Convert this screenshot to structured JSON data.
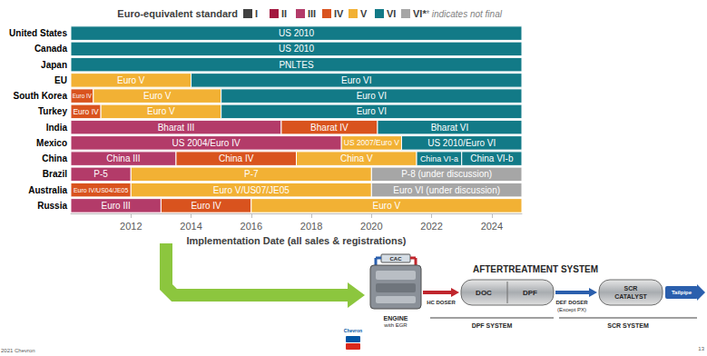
{
  "chart_data": {
    "type": "timeline",
    "legend_title": "Euro-equivalent standard",
    "legend_note": "* indicates not final",
    "legend": "top",
    "standards": [
      {
        "name": "I",
        "color": "#404040"
      },
      {
        "name": "II",
        "color": "#a3173f"
      },
      {
        "name": "III",
        "color": "#b33b69"
      },
      {
        "name": "IV",
        "color": "#d9531e"
      },
      {
        "name": "V",
        "color": "#f2b134"
      },
      {
        "name": "VI",
        "color": "#127a87"
      },
      {
        "name": "VI*",
        "color": "#a6a6a6"
      }
    ],
    "categories": [
      "United States",
      "Canada",
      "Japan",
      "EU",
      "South Korea",
      "Turkey",
      "India",
      "Mexico",
      "China",
      "Brazil",
      "Australia",
      "Russia"
    ],
    "rows": [
      [
        {
          "label": "US 2010",
          "standard": "VI",
          "start": 2010,
          "end": 2025
        }
      ],
      [
        {
          "label": "US 2010",
          "standard": "VI",
          "start": 2010,
          "end": 2025
        }
      ],
      [
        {
          "label": "PNLTES",
          "standard": "VI",
          "start": 2010,
          "end": 2025
        }
      ],
      [
        {
          "label": "Euro V",
          "standard": "V",
          "start": 2010,
          "end": 2014
        },
        {
          "label": "Euro VI",
          "standard": "VI",
          "start": 2014,
          "end": 2025
        }
      ],
      [
        {
          "label": "Euro IV",
          "standard": "IV",
          "start": 2010,
          "end": 2010.75
        },
        {
          "label": "Euro V",
          "standard": "V",
          "start": 2010.75,
          "end": 2015
        },
        {
          "label": "Euro VI",
          "standard": "VI",
          "start": 2015,
          "end": 2025
        }
      ],
      [
        {
          "label": "Euro IV",
          "standard": "IV",
          "start": 2010,
          "end": 2011
        },
        {
          "label": "Euro V",
          "standard": "V",
          "start": 2011,
          "end": 2015
        },
        {
          "label": "Euro VI",
          "standard": "VI",
          "start": 2015,
          "end": 2025
        }
      ],
      [
        {
          "label": "Bharat III",
          "standard": "III",
          "start": 2010,
          "end": 2017
        },
        {
          "label": "Bharat IV",
          "standard": "IV",
          "start": 2017,
          "end": 2020.2
        },
        {
          "label": "Bharat VI",
          "standard": "VI",
          "start": 2020.2,
          "end": 2025
        }
      ],
      [
        {
          "label": "US 2004/Euro IV",
          "standard": "III",
          "start": 2010,
          "end": 2019
        },
        {
          "label": "US 2007/Euro V",
          "standard": "V",
          "start": 2019,
          "end": 2021
        },
        {
          "label": "US 2010/Euro VI",
          "standard": "VI",
          "start": 2021,
          "end": 2025
        }
      ],
      [
        {
          "label": "China III",
          "standard": "III",
          "start": 2010,
          "end": 2013.5
        },
        {
          "label": "China IV",
          "standard": "IV",
          "start": 2013.5,
          "end": 2017.5
        },
        {
          "label": "China V",
          "standard": "V",
          "start": 2017.5,
          "end": 2021.5
        },
        {
          "label": "China VI-a",
          "standard": "VI",
          "start": 2021.5,
          "end": 2023
        },
        {
          "label": "China VI-b",
          "standard": "VI",
          "start": 2023,
          "end": 2025
        }
      ],
      [
        {
          "label": "P-5",
          "standard": "III",
          "start": 2010,
          "end": 2012
        },
        {
          "label": "P-7",
          "standard": "V",
          "start": 2012,
          "end": 2020
        },
        {
          "label": "P-8 (under discussion)",
          "standard": "VI*",
          "start": 2020,
          "end": 2025
        }
      ],
      [
        {
          "label": "Euro IV/US04/JE05",
          "standard": "IV",
          "start": 2010,
          "end": 2012
        },
        {
          "label": "Euro V/US07/JE05",
          "standard": "V",
          "start": 2012,
          "end": 2020
        },
        {
          "label": "Euro VI (under discussion)",
          "standard": "VI*",
          "start": 2020,
          "end": 2025
        }
      ],
      [
        {
          "label": "Euro III",
          "standard": "III",
          "start": 2010,
          "end": 2013
        },
        {
          "label": "Euro IV",
          "standard": "IV",
          "start": 2013,
          "end": 2016
        },
        {
          "label": "Euro V",
          "standard": "V",
          "start": 2016,
          "end": 2025
        }
      ]
    ],
    "xlabel": "Implementation Date (all sales & registrations)",
    "xlim": [
      2010,
      2025
    ],
    "xticks": [
      2012,
      2014,
      2016,
      2018,
      2020,
      2022,
      2024
    ],
    "grid": false
  },
  "diagram": {
    "title": "AFTERTREATMENT SYSTEM",
    "cac": "CAC",
    "engine": "ENGINE",
    "engine_note": "with EGR",
    "hc_doser": "HC DOSER",
    "doc": "DOC",
    "dpf": "DPF",
    "def_doser": "DEF DOSER",
    "def_doser_note": "(Except PX)",
    "scr_lines": [
      "SCR",
      "CATALYST"
    ],
    "tailpipe": "Tailpipe",
    "dpf_system": "DPF SYSTEM",
    "scr_system": "SCR SYSTEM"
  },
  "logo": "Chevron",
  "footer": {
    "left": "2021 Chevron",
    "page": "13"
  }
}
